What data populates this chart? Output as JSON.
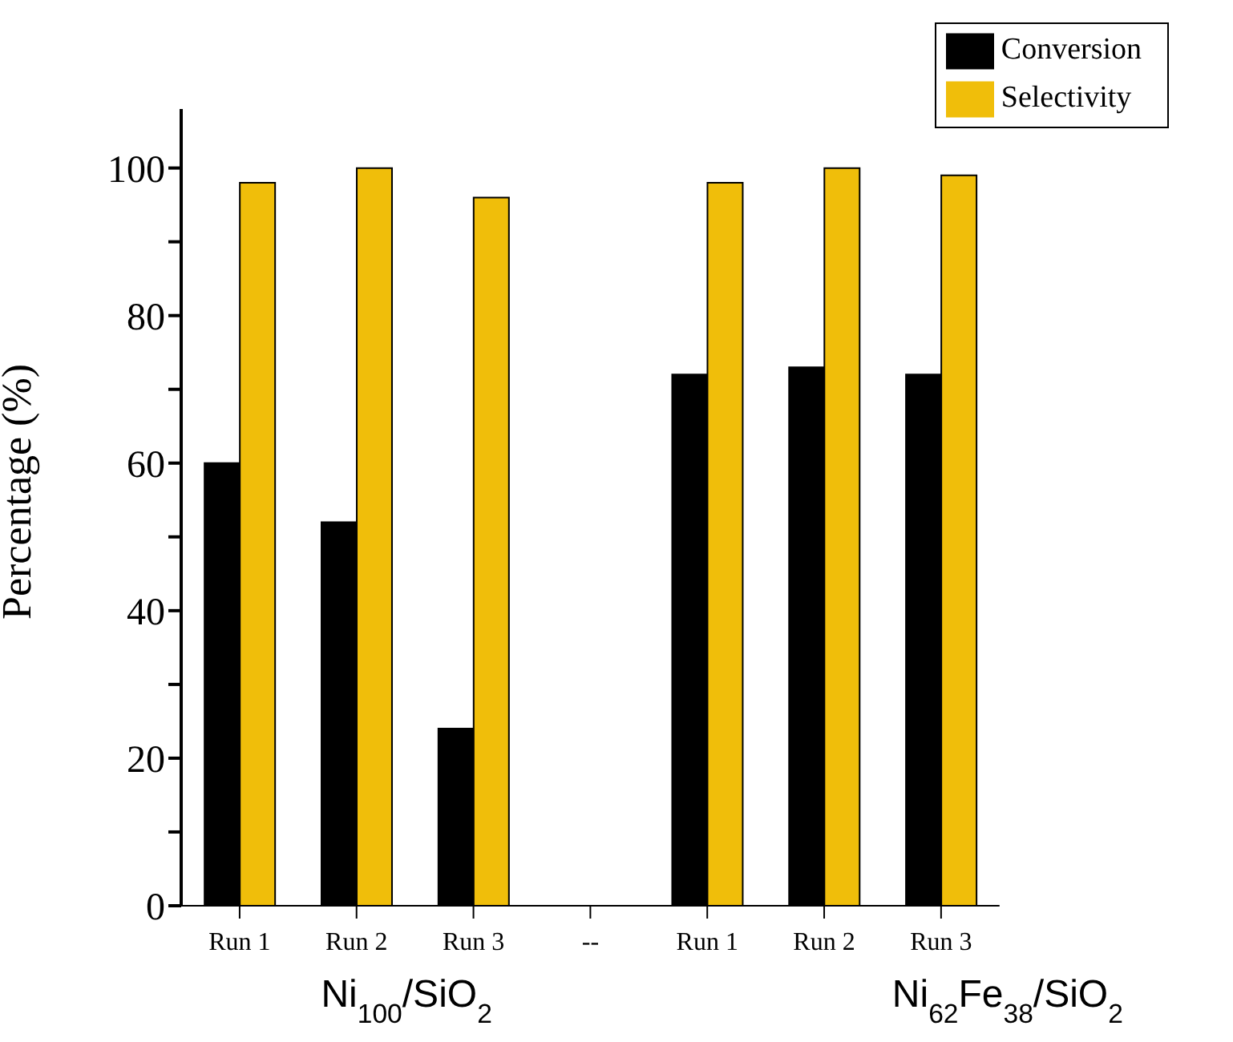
{
  "chart_data": {
    "type": "bar",
    "ylabel": "Percentage (%)",
    "categories": [
      "Run 1",
      "Run 2",
      "Run 3",
      "--",
      "Run 1",
      "Run 2",
      "Run 3"
    ],
    "series": [
      {
        "name": "Conversion",
        "color": "#000000",
        "values": [
          60,
          52,
          24,
          null,
          72,
          73,
          72
        ]
      },
      {
        "name": "Selectivity",
        "color": "#f0be0a",
        "values": [
          98,
          100,
          96,
          null,
          98,
          100,
          99
        ]
      }
    ],
    "annotations": [
      "Ni$_{100}$/SiO$_{2}$",
      "Ni$_{62}$Fe$_{38}$/SiO$_{2}$"
    ],
    "ylim": [
      0,
      108
    ],
    "yticks": [
      0,
      {
        "value": 10,
        "label": null
      },
      20,
      {
        "value": 30,
        "label": null
      },
      40,
      {
        "value": 50,
        "label": null
      },
      60,
      {
        "value": 70,
        "label": null
      },
      80,
      {
        "value": 90,
        "label": null
      },
      100
    ],
    "grid": false,
    "legend": "top right"
  }
}
